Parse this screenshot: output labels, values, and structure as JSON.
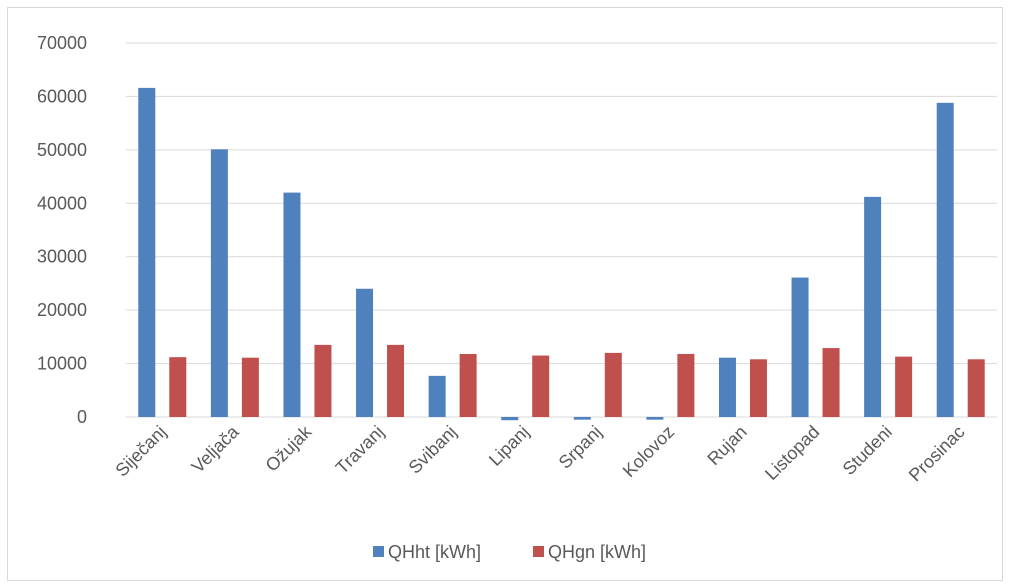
{
  "chart_data": {
    "type": "bar",
    "categories": [
      "Siječanj",
      "Veljača",
      "Ožujak",
      "Travanj",
      "Svibanj",
      "Lipanj",
      "Srpanj",
      "Kolovoz",
      "Rujan",
      "Listopad",
      "Studeni",
      "Prosinac"
    ],
    "series": [
      {
        "name": "QHht [kWh]",
        "color": "#4f81bd",
        "values": [
          61600,
          50100,
          42000,
          24000,
          7700,
          -600,
          -500,
          -500,
          11100,
          26100,
          41200,
          58800
        ]
      },
      {
        "name": "QHgn  [kWh]",
        "color": "#c0504d",
        "values": [
          11200,
          11100,
          13500,
          13500,
          11800,
          11500,
          12000,
          11800,
          10800,
          12900,
          11300,
          10800
        ]
      }
    ],
    "yticks": [
      "70000",
      "60000",
      "50000",
      "40000",
      "30000",
      "20000",
      "10000",
      "0"
    ],
    "ylim": [
      0,
      70000
    ],
    "grid": true,
    "legend_position": "bottom",
    "title": "",
    "xlabel": "",
    "ylabel": ""
  }
}
